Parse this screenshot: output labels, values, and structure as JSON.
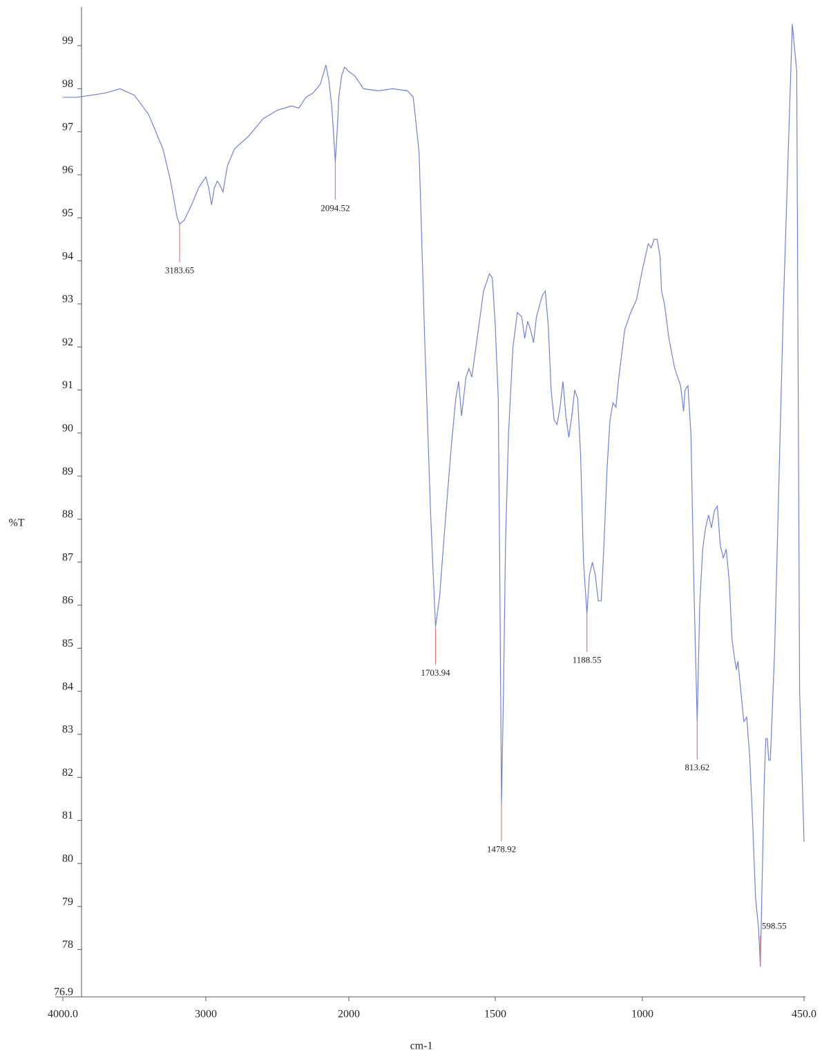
{
  "chart_data": {
    "type": "line",
    "x_label": "cm-1",
    "y_label": "%T",
    "color": "#7080d8",
    "peak_color": "#e07a7a",
    "xlim": [
      4000,
      450
    ],
    "xticks": [
      {
        "value": 4000,
        "label": "4000.0"
      },
      3000,
      2000,
      1500,
      1000,
      {
        "value": 450,
        "label": "450.0"
      }
    ],
    "ylim": [
      76.9,
      99.9
    ],
    "yticks": [
      76.9,
      78,
      79,
      80,
      81,
      82,
      83,
      84,
      85,
      86,
      87,
      88,
      89,
      90,
      91,
      92,
      93,
      94,
      95,
      96,
      97,
      98,
      99
    ],
    "x": [
      4000,
      3900,
      3800,
      3700,
      3600,
      3500,
      3400,
      3300,
      3250,
      3200,
      3183.65,
      3150,
      3100,
      3050,
      3000,
      2980,
      2960,
      2940,
      2920,
      2900,
      2880,
      2850,
      2800,
      2700,
      2600,
      2500,
      2400,
      2350,
      2300,
      2250,
      2200,
      2160,
      2140,
      2120,
      2100,
      2094.52,
      2085,
      2070,
      2050,
      2030,
      2000,
      1980,
      1950,
      1900,
      1850,
      1800,
      1780,
      1760,
      1740,
      1720,
      1703.94,
      1690,
      1670,
      1650,
      1635,
      1625,
      1615,
      1600,
      1590,
      1580,
      1560,
      1540,
      1520,
      1510,
      1500,
      1490,
      1485,
      1478.92,
      1472,
      1465,
      1455,
      1440,
      1425,
      1410,
      1400,
      1390,
      1380,
      1370,
      1360,
      1340,
      1330,
      1320,
      1310,
      1300,
      1290,
      1280,
      1270,
      1260,
      1250,
      1240,
      1230,
      1220,
      1210,
      1200,
      1188.55,
      1180,
      1170,
      1160,
      1150,
      1140,
      1130,
      1120,
      1110,
      1100,
      1090,
      1080,
      1060,
      1040,
      1020,
      1000,
      980,
      970,
      960,
      950,
      940,
      935,
      925,
      910,
      890,
      870,
      860,
      855,
      845,
      835,
      825,
      813.62,
      805,
      795,
      785,
      775,
      765,
      755,
      745,
      735,
      725,
      715,
      705,
      695,
      685,
      680,
      675,
      665,
      655,
      645,
      635,
      625,
      615,
      605,
      598.55,
      592,
      585,
      580,
      575,
      570,
      565,
      560,
      550,
      520,
      490,
      475,
      465,
      450
    ],
    "values": [
      97.8,
      97.8,
      97.85,
      97.9,
      98.0,
      97.85,
      97.4,
      96.6,
      95.9,
      95.0,
      94.85,
      94.95,
      95.3,
      95.7,
      95.95,
      95.7,
      95.3,
      95.7,
      95.85,
      95.75,
      95.6,
      96.2,
      96.6,
      96.9,
      97.3,
      97.5,
      97.6,
      97.55,
      97.8,
      97.9,
      98.1,
      98.55,
      98.2,
      97.6,
      96.6,
      96.3,
      96.8,
      97.8,
      98.3,
      98.5,
      98.4,
      98.3,
      98.0,
      97.95,
      98.0,
      97.95,
      97.8,
      96.5,
      92,
      88,
      85.5,
      86.2,
      88,
      89.7,
      90.8,
      91.2,
      90.4,
      91.3,
      91.5,
      91.3,
      92.3,
      93.3,
      93.7,
      93.6,
      92.5,
      90.8,
      87,
      81.4,
      84,
      87.5,
      90,
      92,
      92.8,
      92.7,
      92.2,
      92.6,
      92.4,
      92.1,
      92.7,
      93.2,
      93.3,
      92.5,
      91,
      90.3,
      90.2,
      90.6,
      91.2,
      90.4,
      89.9,
      90.4,
      91.0,
      90.8,
      89.5,
      87,
      85.8,
      86.7,
      87.0,
      86.7,
      86.1,
      86.1,
      87.5,
      89.2,
      90.3,
      90.7,
      90.6,
      91.3,
      92.4,
      92.8,
      93.1,
      93.8,
      94.4,
      94.3,
      94.5,
      94.5,
      94.1,
      93.3,
      93.0,
      92.2,
      91.5,
      91.1,
      90.5,
      91.0,
      91.1,
      90.0,
      86.5,
      83.3,
      86,
      87.3,
      87.8,
      88.1,
      87.8,
      88.2,
      88.3,
      87.4,
      87.1,
      87.3,
      86.6,
      85.2,
      84.7,
      84.5,
      84.7,
      84.0,
      83.3,
      83.4,
      82.5,
      81.0,
      79.2,
      78.5,
      77.6,
      79.8,
      82.0,
      82.9,
      82.9,
      82.4,
      82.4,
      83.2,
      85,
      93,
      99.5,
      98.4,
      84,
      80.5
    ],
    "peaks": [
      {
        "x": 3183.65,
        "y": 94.85
      },
      {
        "x": 2094.52,
        "y": 96.3
      },
      {
        "x": 1703.94,
        "y": 85.5
      },
      {
        "x": 1478.92,
        "y": 81.4
      },
      {
        "x": 1188.55,
        "y": 85.8
      },
      {
        "x": 813.62,
        "y": 83.3
      },
      {
        "x": 598.55,
        "y": 77.6
      }
    ]
  }
}
